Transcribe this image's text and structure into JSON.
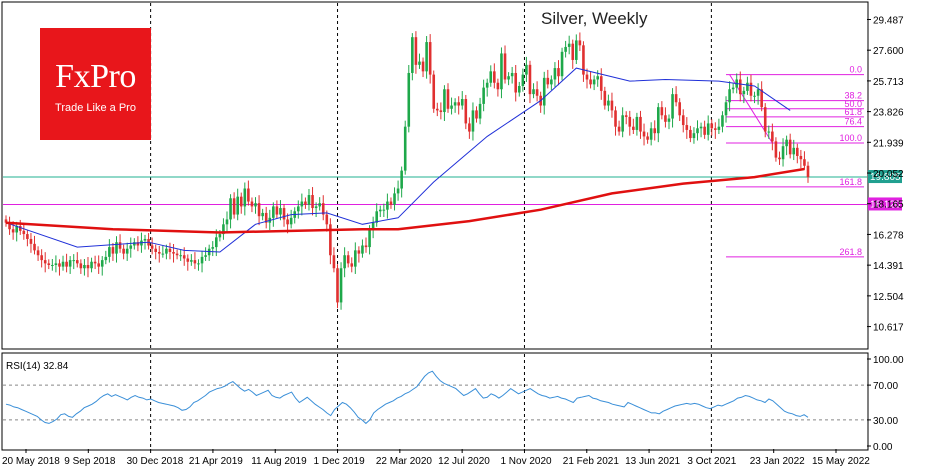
{
  "logo": {
    "brand": "FxPro",
    "tagline": "Trade Like a Pro",
    "color": "#e8161b"
  },
  "chart_data": [
    {
      "type": "candlestick",
      "title": "Silver, Weekly",
      "price_ticks": [
        "29.487",
        "27.600",
        "25.713",
        "23.826",
        "21.939",
        "20.052",
        "18.165",
        "16.278",
        "14.391",
        "12.504",
        "10.617"
      ],
      "price_range": [
        9.3,
        30.5
      ],
      "x_labels": [
        "20 May 2018",
        "9 Sep 2018",
        "30 Dec 2018",
        "21 Apr 2019",
        "11 Aug 2019",
        "1 Dec 2019",
        "22 Mar 2020",
        "12 Jul 2020",
        "1 Nov 2020",
        "21 Feb 2021",
        "13 Jun 2021",
        "3 Oct 2021",
        "23 Jan 2022",
        "15 May 2022"
      ],
      "grid": false,
      "vertical_dashed_lines": [
        "30 Dec 2018",
        "1 Dec 2019",
        "1 Nov 2020",
        "3 Oct 2021"
      ],
      "closes": [
        17.0,
        16.6,
        16.4,
        16.8,
        16.5,
        16.3,
        16.0,
        15.7,
        15.3,
        15.0,
        14.7,
        14.5,
        14.4,
        14.4,
        14.5,
        14.3,
        14.6,
        14.3,
        14.7,
        14.7,
        14.5,
        14.2,
        14.4,
        14.2,
        14.6,
        14.5,
        14.3,
        14.7,
        14.9,
        15.5,
        15.1,
        15.8,
        15.4,
        15.1,
        15.4,
        15.6,
        15.8,
        15.6,
        15.9,
        16.0,
        15.6,
        15.4,
        15.2,
        15.1,
        15.1,
        15.4,
        15.2,
        15.1,
        15.0,
        15.0,
        14.8,
        14.6,
        14.7,
        14.5,
        14.5,
        14.9,
        15.0,
        15.4,
        15.5,
        16.1,
        16.3,
        16.9,
        17.2,
        18.5,
        17.5,
        18.6,
        18.0,
        19.1,
        18.3,
        18.0,
        18.2,
        17.4,
        17.6,
        17.0,
        17.3,
        18.0,
        17.5,
        17.9,
        17.2,
        16.9,
        17.3,
        17.7,
        18.0,
        18.3,
        18.1,
        18.7,
        17.9,
        18.0,
        18.2,
        17.5,
        16.9,
        15.0,
        14.2,
        12.1,
        14.2,
        15.0,
        14.5,
        14.3,
        15.3,
        15.1,
        15.6,
        15.5,
        16.6,
        17.0,
        17.7,
        17.8,
        17.8,
        18.3,
        18.1,
        18.8,
        19.1,
        20.2,
        22.9,
        26.2,
        28.4,
        26.7,
        26.9,
        26.3,
        28.1,
        26.1,
        24.0,
        23.9,
        23.8,
        25.2,
        24.0,
        24.2,
        24.4,
        24.2,
        24.6,
        23.1,
        22.6,
        23.9,
        23.4,
        24.3,
        25.3,
        25.6,
        26.3,
        25.6,
        25.2,
        27.4,
        25.8,
        26.0,
        26.2,
        25.0,
        25.4,
        26.1,
        26.7,
        24.9,
        25.2,
        24.8,
        24.2,
        25.9,
        25.5,
        25.8,
        26.5,
        26.0,
        27.5,
        27.8,
        28.0,
        27.0,
        28.2,
        27.9,
        26.1,
        25.8,
        25.5,
        25.8,
        26.0,
        25.1,
        24.2,
        24.5,
        23.9,
        22.9,
        22.6,
        23.6,
        23.5,
        22.9,
        22.7,
        23.5,
        22.6,
        22.3,
        22.1,
        22.8,
        22.5,
        24.1,
        23.6,
        23.2,
        23.4,
        24.9,
        24.4,
        23.6,
        23.0,
        22.7,
        22.2,
        22.5,
        22.8,
        22.9,
        22.4,
        23.1,
        22.8,
        22.7,
        22.9,
        23.6,
        24.4,
        25.2,
        25.3,
        25.8,
        24.9,
        25.1,
        25.6,
        24.8,
        24.8,
        25.2,
        24.1,
        22.6,
        22.6,
        22.0,
        21.0,
        20.9,
        21.7,
        22.1,
        21.2,
        21.6,
        21.1,
        20.9,
        20.5,
        19.8
      ],
      "overlays": [
        {
          "name": "MA blue",
          "color": "#2030d8",
          "from_bar": 0,
          "points": [
            [
              0,
              17.0
            ],
            [
              20,
              15.5
            ],
            [
              40,
              15.8
            ],
            [
              50,
              15.3
            ],
            [
              60,
              15.2
            ],
            [
              70,
              16.9
            ],
            [
              80,
              17.5
            ],
            [
              90,
              17.6
            ],
            [
              100,
              16.9
            ],
            [
              110,
              17.3
            ],
            [
              120,
              19.5
            ],
            [
              135,
              22.3
            ],
            [
              150,
              24.5
            ],
            [
              160,
              26.5
            ],
            [
              175,
              25.7
            ],
            [
              185,
              25.8
            ],
            [
              200,
              25.7
            ],
            [
              210,
              25.4
            ],
            [
              220,
              23.9
            ]
          ]
        },
        {
          "name": "MA red",
          "color": "#e01010",
          "from_bar": 0,
          "points": [
            [
              0,
              17.0
            ],
            [
              30,
              16.6
            ],
            [
              60,
              16.4
            ],
            [
              100,
              16.6
            ],
            [
              110,
              16.6
            ],
            [
              130,
              17.1
            ],
            [
              150,
              17.8
            ],
            [
              170,
              18.8
            ],
            [
              190,
              19.4
            ],
            [
              210,
              19.8
            ],
            [
              224,
              20.3
            ]
          ]
        }
      ],
      "fibonacci": [
        {
          "label": "0.0",
          "price": "26.1"
        },
        {
          "label": "38.2",
          "price": "24.5"
        },
        {
          "label": "50.0",
          "price": "24.0"
        },
        {
          "label": "61.8",
          "price": "23.5"
        },
        {
          "label": "76.4",
          "price": "22.9"
        },
        {
          "label": "100.0",
          "price": "21.9"
        },
        {
          "label": "161.8",
          "price": "19.2"
        },
        {
          "label": "261.8",
          "price": "14.9"
        }
      ],
      "horizontal_lines": [
        {
          "price": "19.805",
          "color": "#20b090"
        },
        {
          "price": "18.120",
          "color": "#e020e0"
        }
      ],
      "price_badges": [
        {
          "label": "19.805",
          "bg": "#20a090"
        },
        {
          "label": "18.120",
          "bg": "#e020e0"
        }
      ],
      "colors": {
        "up": "#1ea84a",
        "down": "#e03030",
        "fib": "#e020e0"
      }
    },
    {
      "type": "line",
      "title": "RSI(14) 32.84",
      "y_ticks": [
        "100.00",
        "70.00",
        "30.00",
        "0.00"
      ],
      "ylim": [
        0,
        100
      ],
      "levels": [
        70,
        30
      ],
      "color": "#3a8fd8",
      "values": [
        48,
        47,
        45,
        44,
        42,
        40,
        38,
        36,
        34,
        30,
        27,
        26,
        28,
        31,
        36,
        37,
        34,
        33,
        37,
        40,
        44,
        46,
        48,
        51,
        55,
        58,
        60,
        57,
        59,
        57,
        55,
        53,
        56,
        58,
        56,
        55,
        53,
        54,
        52,
        50,
        49,
        48,
        47,
        46,
        44,
        41,
        42,
        45,
        50,
        52,
        55,
        58,
        62,
        64,
        66,
        67,
        69,
        72,
        74,
        70,
        66,
        63,
        65,
        62,
        58,
        60,
        62,
        64,
        58,
        56,
        55,
        58,
        60,
        62,
        55,
        50,
        53,
        56,
        52,
        48,
        45,
        42,
        38,
        35,
        42,
        46,
        50,
        48,
        44,
        39,
        33,
        30,
        26,
        30,
        38,
        42,
        45,
        48,
        50,
        52,
        55,
        57,
        60,
        62,
        65,
        68,
        74,
        80,
        84,
        86,
        80,
        75,
        72,
        70,
        68,
        66,
        62,
        58,
        60,
        63,
        66,
        60,
        55,
        56,
        60,
        58,
        55,
        58,
        62,
        66,
        63,
        60,
        62,
        64,
        66,
        63,
        60,
        58,
        57,
        55,
        56,
        57,
        55,
        54,
        52,
        50,
        55,
        56,
        57,
        58,
        55,
        54,
        52,
        51,
        50,
        48,
        47,
        46,
        45,
        50,
        48,
        46,
        44,
        42,
        40,
        38,
        38,
        37,
        40,
        42,
        44,
        46,
        47,
        48,
        49,
        48,
        49,
        48,
        46,
        44,
        43,
        45,
        47,
        46,
        48,
        50,
        52,
        55,
        56,
        58,
        57,
        55,
        53,
        52,
        50,
        54,
        52,
        48,
        44,
        40,
        38,
        37,
        35,
        34,
        36,
        33
      ]
    }
  ]
}
